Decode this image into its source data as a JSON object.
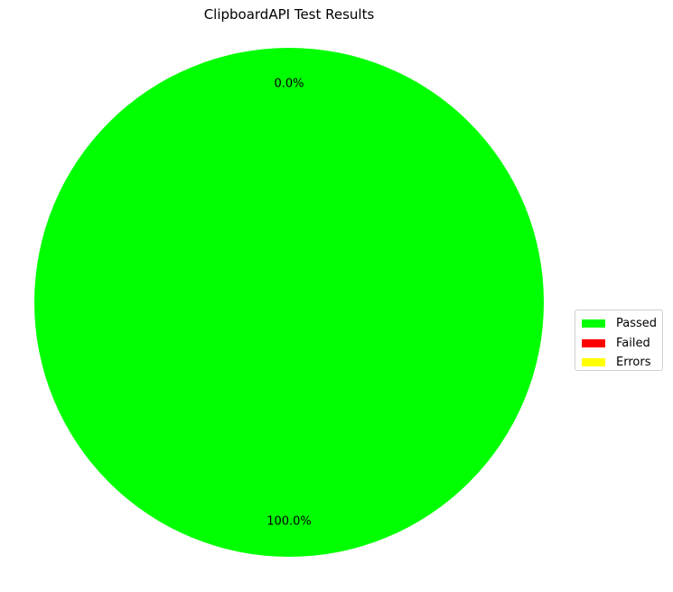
{
  "chart_data": {
    "type": "pie",
    "title": "ClipboardAPI Test Results",
    "categories": [
      "Passed",
      "Failed",
      "Errors"
    ],
    "values": [
      100,
      0,
      0
    ],
    "colors": [
      "#00ff00",
      "#ff0000",
      "#ffff00"
    ],
    "pct_labels": [
      "100.0%",
      "0.0%",
      "0.0%"
    ],
    "legend_position": "right",
    "start_angle_deg": 90
  }
}
